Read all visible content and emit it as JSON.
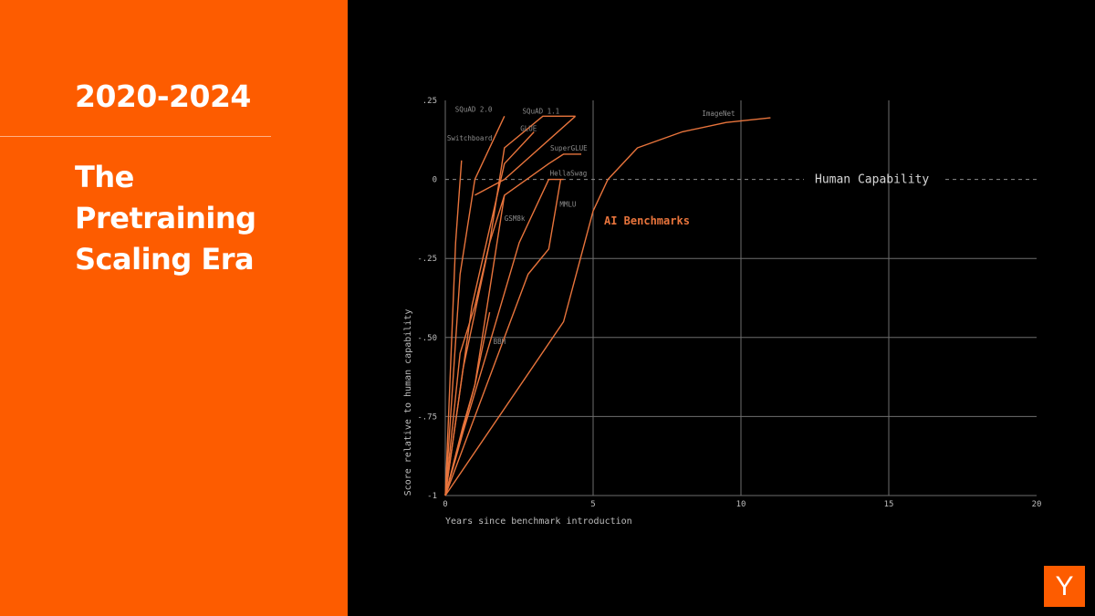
{
  "slide": {
    "years": "2020-2024",
    "title_lines": [
      "The",
      "Pretraining",
      "Scaling Era"
    ],
    "logo_letter": "Y"
  },
  "colors": {
    "accent": "#fd5c00",
    "series_line": "#e8743c",
    "grid": "#6e6e6e",
    "background": "#000000"
  },
  "chart_data": {
    "type": "line",
    "xlabel": "Years since benchmark introduction",
    "ylabel": "Score relative to human capability",
    "xlim": [
      0,
      20
    ],
    "ylim": [
      -1,
      0.25
    ],
    "x_ticks": [
      0,
      5,
      10,
      15,
      20
    ],
    "x_tick_labels": [
      "0",
      "5",
      "10",
      "15",
      "20"
    ],
    "y_ticks": [
      -1,
      -0.75,
      -0.5,
      -0.25,
      0,
      0.25
    ],
    "y_tick_labels": [
      "-1",
      "-.75",
      "-.50",
      "-.25",
      "0",
      ".25"
    ],
    "grid": true,
    "reference_line": {
      "y": 0,
      "label": "Human Capability",
      "style": "dashed"
    },
    "annotation": "AI Benchmarks",
    "series": [
      {
        "name": "Switchboard",
        "x": [
          0,
          0.35,
          0.55
        ],
        "y": [
          -1,
          -0.2,
          0.06
        ]
      },
      {
        "name": "SQuAD 2.0",
        "x": [
          0,
          0.5,
          1.0,
          2.0
        ],
        "y": [
          -1,
          -0.3,
          0.0,
          0.2
        ]
      },
      {
        "name": "SQuAD 1.1",
        "x": [
          0,
          0.6,
          1.5,
          2.0,
          3.3,
          4.4
        ],
        "y": [
          -1,
          -0.6,
          -0.2,
          0.1,
          0.2,
          0.2
        ]
      },
      {
        "name": "GLUE",
        "x": [
          0,
          0.9,
          2.0,
          3.0
        ],
        "y": [
          -1,
          -0.4,
          0.05,
          0.15
        ]
      },
      {
        "name": "SuperGLUE",
        "x": [
          0,
          1.0,
          2.0,
          3.5,
          4.0,
          4.6
        ],
        "y": [
          -1,
          -0.65,
          -0.05,
          0.05,
          0.08,
          0.08
        ]
      },
      {
        "name": "HellaSwag",
        "x": [
          0,
          0.6,
          1.4,
          2.5,
          3.5,
          4.0
        ],
        "y": [
          -1,
          -0.8,
          -0.55,
          -0.2,
          0.0,
          0.0
        ]
      },
      {
        "name": "MMLU",
        "x": [
          0,
          1.0,
          2.0,
          2.8,
          3.5,
          3.9
        ],
        "y": [
          -1,
          -0.75,
          -0.5,
          -0.3,
          -0.22,
          0.0
        ]
      },
      {
        "name": "GSM8k",
        "x": [
          0,
          0.5,
          1.0,
          1.5,
          2.0
        ],
        "y": [
          -1,
          -0.55,
          -0.4,
          -0.2,
          -0.05
        ]
      },
      {
        "name": "BBH",
        "x": [
          0,
          0.6,
          1.0,
          1.5
        ],
        "y": [
          -1,
          -0.78,
          -0.65,
          -0.42
        ]
      },
      {
        "name": "ImageNet",
        "x": [
          0,
          4.0,
          5.0,
          5.5,
          6.5,
          8.0,
          9.5,
          11.0
        ],
        "y": [
          -1,
          -0.45,
          -0.1,
          0.0,
          0.1,
          0.15,
          0.18,
          0.195
        ]
      },
      {
        "name": "",
        "x": [
          1.0,
          2.0,
          4.4
        ],
        "y": [
          -0.05,
          0.0,
          0.2
        ]
      }
    ]
  }
}
